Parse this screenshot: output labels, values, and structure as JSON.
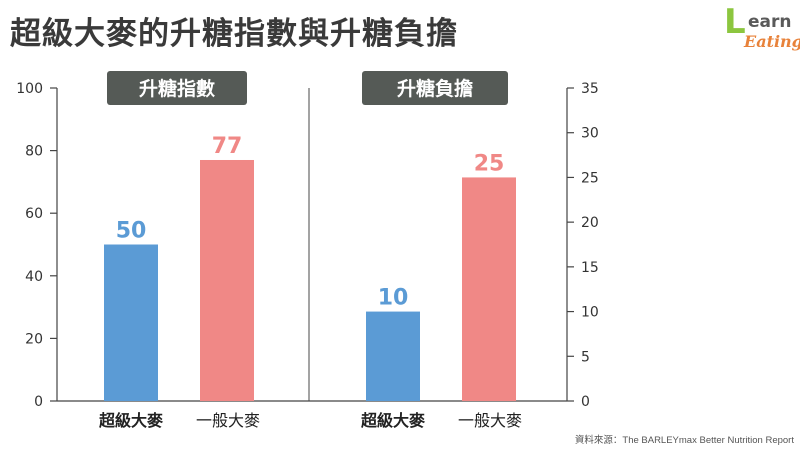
{
  "title": "超級大麥的升糖指數與升糖負擔",
  "logo": {
    "line1_initial": "L",
    "line1_rest": "earn",
    "line2": "Eating"
  },
  "source": "資料來源：The BARLEYmax Better Nutrition Report",
  "colors": {
    "barley_max": "#5b9bd5",
    "regular_barley": "#f08886",
    "label_box": "#555a56"
  },
  "chart_data": [
    {
      "type": "bar",
      "title": "升糖指數",
      "categories": [
        "超級大麥",
        "一般大麥"
      ],
      "values": [
        50,
        77
      ],
      "value_labels": [
        "50",
        "77"
      ],
      "ylim": [
        0,
        100
      ],
      "yticks": [
        0,
        20,
        40,
        60,
        80,
        100
      ],
      "ytick_labels": [
        "0",
        "20",
        "40",
        "60",
        "80",
        "100"
      ],
      "axis_side": "left",
      "grid": false
    },
    {
      "type": "bar",
      "title": "升糖負擔",
      "categories": [
        "超級大麥",
        "一般大麥"
      ],
      "values": [
        10,
        25
      ],
      "value_labels": [
        "10",
        "25"
      ],
      "ylim": [
        0,
        35
      ],
      "yticks": [
        0,
        5,
        10,
        15,
        20,
        25,
        30,
        35
      ],
      "ytick_labels": [
        "0",
        "5",
        "10",
        "15",
        "20",
        "25",
        "30",
        "35"
      ],
      "axis_side": "right",
      "grid": false
    }
  ]
}
